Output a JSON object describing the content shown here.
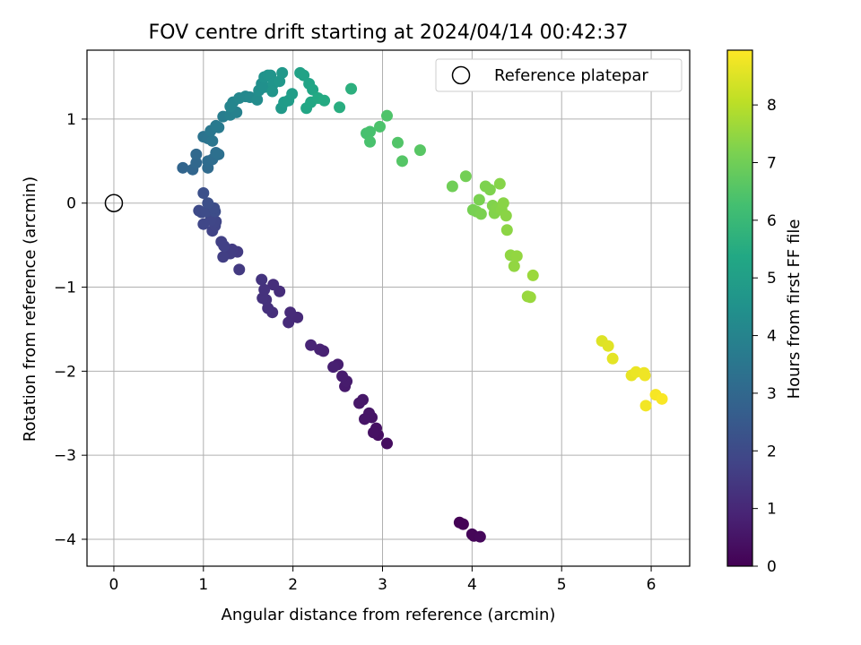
{
  "chart_data": {
    "type": "scatter",
    "title": "FOV centre drift starting at 2024/04/14 00:42:37",
    "xlabel": "Angular distance from reference (arcmin)",
    "ylabel": "Rotation from reference (arcmin)",
    "xlim": [
      -0.3,
      6.43
    ],
    "ylim": [
      -4.32,
      1.82
    ],
    "xticks": [
      0,
      1,
      2,
      3,
      4,
      5,
      6
    ],
    "yticks": [
      -4,
      -3,
      -2,
      -1,
      0,
      1
    ],
    "grid": true,
    "colormap": "viridis",
    "colorbar": {
      "label": "Hours from first FF file",
      "range": [
        0,
        8.95
      ],
      "ticks": [
        0,
        1,
        2,
        3,
        4,
        5,
        6,
        7,
        8
      ]
    },
    "legend": {
      "position": "top-right",
      "entries": [
        "Reference platepar"
      ]
    },
    "reference_point": {
      "x": 0,
      "y": 0
    },
    "points": [
      {
        "x": 3.86,
        "y": -3.8,
        "c": 0.02
      },
      {
        "x": 3.9,
        "y": -3.82,
        "c": 0.05
      },
      {
        "x": 4.0,
        "y": -3.94,
        "c": 0.1
      },
      {
        "x": 4.02,
        "y": -3.96,
        "c": 0.12
      },
      {
        "x": 4.09,
        "y": -3.97,
        "c": 0.15
      },
      {
        "x": 3.05,
        "y": -2.86,
        "c": 0.3
      },
      {
        "x": 2.95,
        "y": -2.76,
        "c": 0.35
      },
      {
        "x": 2.93,
        "y": -2.68,
        "c": 0.4
      },
      {
        "x": 2.9,
        "y": -2.73,
        "c": 0.42
      },
      {
        "x": 2.88,
        "y": -2.55,
        "c": 0.45
      },
      {
        "x": 2.85,
        "y": -2.5,
        "c": 0.5
      },
      {
        "x": 2.8,
        "y": -2.57,
        "c": 0.52
      },
      {
        "x": 2.78,
        "y": -2.34,
        "c": 0.55
      },
      {
        "x": 2.74,
        "y": -2.38,
        "c": 0.58
      },
      {
        "x": 2.58,
        "y": -2.18,
        "c": 0.65
      },
      {
        "x": 2.6,
        "y": -2.12,
        "c": 0.68
      },
      {
        "x": 2.55,
        "y": -2.06,
        "c": 0.7
      },
      {
        "x": 2.5,
        "y": -1.92,
        "c": 0.75
      },
      {
        "x": 2.45,
        "y": -1.95,
        "c": 0.78
      },
      {
        "x": 2.34,
        "y": -1.76,
        "c": 0.85
      },
      {
        "x": 2.3,
        "y": -1.74,
        "c": 0.88
      },
      {
        "x": 2.2,
        "y": -1.69,
        "c": 0.92
      },
      {
        "x": 2.05,
        "y": -1.36,
        "c": 1.05
      },
      {
        "x": 1.97,
        "y": -1.3,
        "c": 1.08
      },
      {
        "x": 1.95,
        "y": -1.42,
        "c": 1.1
      },
      {
        "x": 1.85,
        "y": -1.05,
        "c": 1.15
      },
      {
        "x": 1.78,
        "y": -0.97,
        "c": 1.18
      },
      {
        "x": 1.77,
        "y": -1.3,
        "c": 1.2
      },
      {
        "x": 1.72,
        "y": -1.25,
        "c": 1.22
      },
      {
        "x": 1.7,
        "y": -1.15,
        "c": 1.25
      },
      {
        "x": 1.66,
        "y": -1.13,
        "c": 1.28
      },
      {
        "x": 1.68,
        "y": -1.03,
        "c": 1.3
      },
      {
        "x": 1.65,
        "y": -0.91,
        "c": 1.35
      },
      {
        "x": 1.4,
        "y": -0.79,
        "c": 1.5
      },
      {
        "x": 1.38,
        "y": -0.58,
        "c": 1.55
      },
      {
        "x": 1.32,
        "y": -0.55,
        "c": 1.58
      },
      {
        "x": 1.3,
        "y": -0.6,
        "c": 1.6
      },
      {
        "x": 1.22,
        "y": -0.64,
        "c": 1.65
      },
      {
        "x": 1.2,
        "y": -0.46,
        "c": 1.7
      },
      {
        "x": 1.23,
        "y": -0.51,
        "c": 1.72
      },
      {
        "x": 1.1,
        "y": -0.33,
        "c": 1.8
      },
      {
        "x": 1.13,
        "y": -0.27,
        "c": 1.82
      },
      {
        "x": 1.14,
        "y": -0.22,
        "c": 1.85
      },
      {
        "x": 1.08,
        "y": -0.2,
        "c": 1.88
      },
      {
        "x": 1.0,
        "y": -0.25,
        "c": 1.9
      },
      {
        "x": 0.95,
        "y": -0.09,
        "c": 2.0
      },
      {
        "x": 0.98,
        "y": -0.11,
        "c": 2.02
      },
      {
        "x": 1.03,
        "y": -0.1,
        "c": 2.05
      },
      {
        "x": 1.13,
        "y": -0.1,
        "c": 2.08
      },
      {
        "x": 1.12,
        "y": -0.06,
        "c": 2.1
      },
      {
        "x": 1.05,
        "y": 0.0,
        "c": 2.15
      },
      {
        "x": 1.0,
        "y": 0.12,
        "c": 2.2
      },
      {
        "x": 0.77,
        "y": 0.42,
        "c": 2.9
      },
      {
        "x": 0.88,
        "y": 0.4,
        "c": 2.95
      },
      {
        "x": 0.92,
        "y": 0.48,
        "c": 3.0
      },
      {
        "x": 0.92,
        "y": 0.58,
        "c": 3.05
      },
      {
        "x": 1.05,
        "y": 0.42,
        "c": 3.1
      },
      {
        "x": 1.05,
        "y": 0.5,
        "c": 3.15
      },
      {
        "x": 1.1,
        "y": 0.52,
        "c": 3.2
      },
      {
        "x": 1.14,
        "y": 0.6,
        "c": 3.25
      },
      {
        "x": 1.17,
        "y": 0.58,
        "c": 3.3
      },
      {
        "x": 1.0,
        "y": 0.79,
        "c": 3.4
      },
      {
        "x": 1.05,
        "y": 0.77,
        "c": 3.45
      },
      {
        "x": 1.1,
        "y": 0.74,
        "c": 3.5
      },
      {
        "x": 1.08,
        "y": 0.86,
        "c": 3.55
      },
      {
        "x": 1.14,
        "y": 0.92,
        "c": 3.6
      },
      {
        "x": 1.17,
        "y": 0.9,
        "c": 3.65
      },
      {
        "x": 1.22,
        "y": 1.03,
        "c": 3.75
      },
      {
        "x": 1.3,
        "y": 1.05,
        "c": 3.85
      },
      {
        "x": 1.37,
        "y": 1.08,
        "c": 3.9
      },
      {
        "x": 1.3,
        "y": 1.15,
        "c": 4.0
      },
      {
        "x": 1.33,
        "y": 1.2,
        "c": 4.05
      },
      {
        "x": 1.4,
        "y": 1.25,
        "c": 4.1
      },
      {
        "x": 1.47,
        "y": 1.27,
        "c": 4.15
      },
      {
        "x": 1.52,
        "y": 1.26,
        "c": 4.2
      },
      {
        "x": 1.6,
        "y": 1.23,
        "c": 4.3
      },
      {
        "x": 1.62,
        "y": 1.34,
        "c": 4.35
      },
      {
        "x": 1.65,
        "y": 1.42,
        "c": 4.4
      },
      {
        "x": 1.68,
        "y": 1.38,
        "c": 4.45
      },
      {
        "x": 1.68,
        "y": 1.5,
        "c": 4.5
      },
      {
        "x": 1.72,
        "y": 1.52,
        "c": 4.55
      },
      {
        "x": 1.75,
        "y": 1.52,
        "c": 4.6
      },
      {
        "x": 1.78,
        "y": 1.42,
        "c": 4.62
      },
      {
        "x": 1.77,
        "y": 1.33,
        "c": 4.65
      },
      {
        "x": 1.85,
        "y": 1.45,
        "c": 4.7
      },
      {
        "x": 1.88,
        "y": 1.55,
        "c": 4.75
      },
      {
        "x": 1.87,
        "y": 1.13,
        "c": 4.8
      },
      {
        "x": 1.9,
        "y": 1.2,
        "c": 4.85
      },
      {
        "x": 1.95,
        "y": 1.22,
        "c": 4.9
      },
      {
        "x": 1.99,
        "y": 1.3,
        "c": 4.95
      },
      {
        "x": 2.08,
        "y": 1.55,
        "c": 5.1
      },
      {
        "x": 2.12,
        "y": 1.52,
        "c": 5.15
      },
      {
        "x": 2.18,
        "y": 1.42,
        "c": 5.2
      },
      {
        "x": 2.22,
        "y": 1.35,
        "c": 5.25
      },
      {
        "x": 2.15,
        "y": 1.13,
        "c": 5.3
      },
      {
        "x": 2.2,
        "y": 1.2,
        "c": 5.35
      },
      {
        "x": 2.28,
        "y": 1.25,
        "c": 5.4
      },
      {
        "x": 2.35,
        "y": 1.22,
        "c": 5.45
      },
      {
        "x": 2.52,
        "y": 1.14,
        "c": 5.55
      },
      {
        "x": 2.65,
        "y": 1.36,
        "c": 5.65
      },
      {
        "x": 2.82,
        "y": 0.83,
        "c": 6.3
      },
      {
        "x": 2.86,
        "y": 0.85,
        "c": 6.32
      },
      {
        "x": 2.86,
        "y": 0.73,
        "c": 6.35
      },
      {
        "x": 2.97,
        "y": 0.91,
        "c": 6.4
      },
      {
        "x": 3.05,
        "y": 1.04,
        "c": 6.45
      },
      {
        "x": 3.17,
        "y": 0.72,
        "c": 6.5
      },
      {
        "x": 3.22,
        "y": 0.5,
        "c": 6.55
      },
      {
        "x": 3.42,
        "y": 0.63,
        "c": 6.6
      },
      {
        "x": 3.78,
        "y": 0.2,
        "c": 7.0
      },
      {
        "x": 3.93,
        "y": 0.32,
        "c": 7.05
      },
      {
        "x": 4.01,
        "y": -0.08,
        "c": 7.1
      },
      {
        "x": 4.05,
        "y": -0.1,
        "c": 7.12
      },
      {
        "x": 4.08,
        "y": 0.04,
        "c": 7.15
      },
      {
        "x": 4.1,
        "y": -0.13,
        "c": 7.18
      },
      {
        "x": 4.15,
        "y": 0.2,
        "c": 7.2
      },
      {
        "x": 4.2,
        "y": 0.16,
        "c": 7.22
      },
      {
        "x": 4.23,
        "y": -0.03,
        "c": 7.25
      },
      {
        "x": 4.25,
        "y": -0.12,
        "c": 7.27
      },
      {
        "x": 4.28,
        "y": -0.06,
        "c": 7.3
      },
      {
        "x": 4.31,
        "y": 0.23,
        "c": 7.32
      },
      {
        "x": 4.33,
        "y": -0.08,
        "c": 7.34
      },
      {
        "x": 4.35,
        "y": 0.0,
        "c": 7.36
      },
      {
        "x": 4.38,
        "y": -0.15,
        "c": 7.38
      },
      {
        "x": 4.39,
        "y": -0.32,
        "c": 7.4
      },
      {
        "x": 4.43,
        "y": -0.62,
        "c": 7.45
      },
      {
        "x": 4.47,
        "y": -0.75,
        "c": 7.48
      },
      {
        "x": 4.5,
        "y": -0.63,
        "c": 7.5
      },
      {
        "x": 4.62,
        "y": -1.11,
        "c": 7.55
      },
      {
        "x": 4.65,
        "y": -1.12,
        "c": 7.58
      },
      {
        "x": 4.68,
        "y": -0.86,
        "c": 7.6
      },
      {
        "x": 5.45,
        "y": -1.64,
        "c": 8.5
      },
      {
        "x": 5.52,
        "y": -1.7,
        "c": 8.55
      },
      {
        "x": 5.57,
        "y": -1.85,
        "c": 8.6
      },
      {
        "x": 5.78,
        "y": -2.05,
        "c": 8.65
      },
      {
        "x": 5.83,
        "y": -2.01,
        "c": 8.7
      },
      {
        "x": 5.92,
        "y": -2.02,
        "c": 8.72
      },
      {
        "x": 5.93,
        "y": -2.05,
        "c": 8.75
      },
      {
        "x": 5.94,
        "y": -2.41,
        "c": 8.8
      },
      {
        "x": 6.05,
        "y": -2.28,
        "c": 8.85
      },
      {
        "x": 6.12,
        "y": -2.33,
        "c": 8.9
      }
    ]
  }
}
